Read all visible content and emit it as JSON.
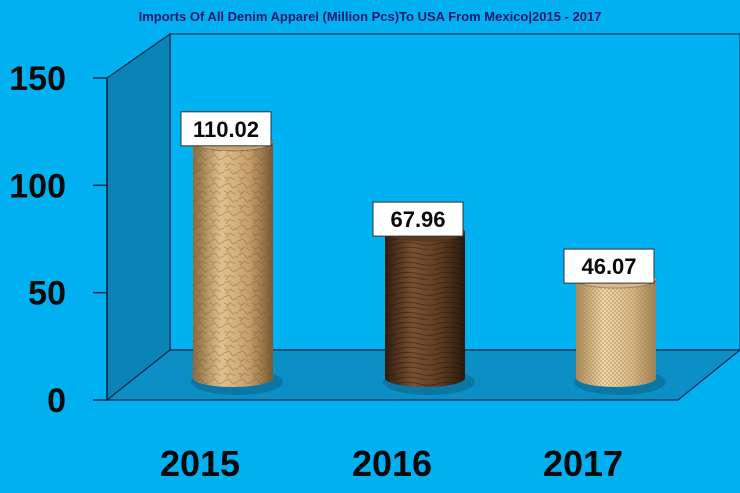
{
  "chart_data": {
    "type": "bar",
    "title": "Imports Of All Denim Apparel (Million Pcs)To USA From Mexico|2015 - 2017",
    "categories": [
      "2015",
      "2016",
      "2017"
    ],
    "values": [
      110.02,
      67.96,
      46.07
    ],
    "data_labels": [
      "110.02",
      "67.96",
      "46.07"
    ],
    "ylim": [
      0,
      150
    ],
    "yticks": [
      0,
      50,
      100,
      150
    ],
    "ytick_labels": [
      "0",
      "50",
      "100",
      "150"
    ],
    "grid": false,
    "legend": "none",
    "bar_style": "3d-cylinder",
    "colors": {
      "background": "#00b0f0",
      "back_wall": "#00b2f2",
      "side_wall": "#0a84b6",
      "floor": "#0c8fc4",
      "axis": "#0a2a4a",
      "bars": [
        "#c9a472",
        "#5c3a20",
        "#d9b98a"
      ]
    }
  }
}
